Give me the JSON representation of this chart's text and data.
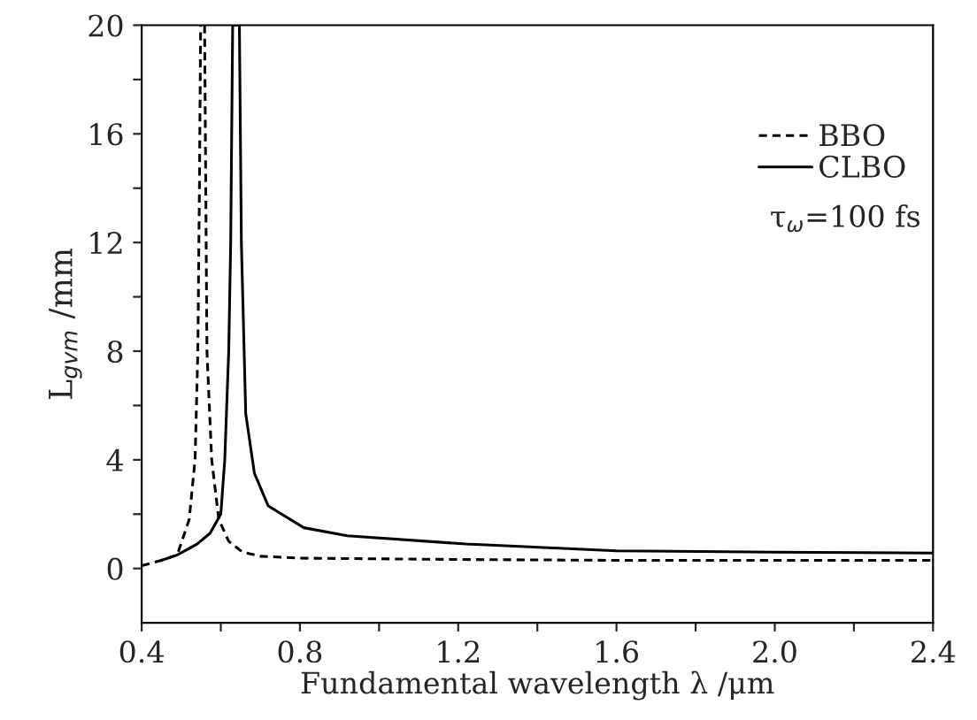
{
  "chart_data": {
    "type": "line",
    "xlabel": "Fundamental wavelength λ /μm",
    "ylabel": "L$_{gvm}$ /mm",
    "xlim": [
      0.4,
      2.4
    ],
    "ylim": [
      -2,
      20
    ],
    "xticks": [
      0.4,
      {
        "value": 0.6,
        "label": null
      },
      0.8,
      {
        "value": 1.0,
        "label": null
      },
      1.2,
      {
        "value": 1.4,
        "label": null
      },
      1.6,
      {
        "value": 1.8,
        "label": null
      },
      {
        "value": 2,
        "label": "2.0"
      },
      {
        "value": 2.2,
        "label": null
      },
      2.4
    ],
    "yticks": [
      0,
      {
        "value": 2,
        "label": null
      },
      4,
      {
        "value": 6,
        "label": null
      },
      8,
      {
        "value": 10,
        "label": null
      },
      12,
      {
        "value": 14,
        "label": null
      },
      16,
      {
        "value": 18,
        "label": null
      },
      20
    ],
    "legend": "top right",
    "grid": false,
    "series": [
      {
        "name": "BBO",
        "color": "#000000",
        "line_style": "dashed",
        "x": [
          0.4,
          0.45,
          0.49,
          0.52,
          0.535,
          0.542,
          0.546,
          0.549,
          null,
          0.559,
          0.565,
          0.577,
          0.595,
          0.62,
          0.655,
          0.7,
          0.8,
          1.21,
          1.6,
          2.0,
          2.4
        ],
        "values": [
          0.1,
          0.3,
          0.5,
          1.8,
          4,
          8,
          14,
          20,
          null,
          20,
          8,
          4,
          1.8,
          1.0,
          0.6,
          0.45,
          0.38,
          0.33,
          0.3,
          0.3,
          0.3
        ]
      },
      {
        "name": "CLBO",
        "color": "#000000",
        "line_style": "solid",
        "x": [
          0.45,
          0.49,
          0.54,
          0.573,
          0.6,
          0.61,
          0.62,
          0.625,
          0.63,
          0.647,
          0.652,
          0.663,
          0.685,
          0.72,
          0.81,
          0.92,
          1.22,
          1.6,
          2.0,
          2.4
        ],
        "values": [
          0.3,
          0.5,
          0.9,
          1.3,
          2.0,
          4,
          8,
          12,
          20,
          20,
          12,
          5.7,
          3.5,
          2.3,
          1.5,
          1.2,
          0.9,
          0.65,
          0.6,
          0.57
        ]
      }
    ],
    "annotations": [
      "τ$_{ω}$=100 fs"
    ]
  }
}
